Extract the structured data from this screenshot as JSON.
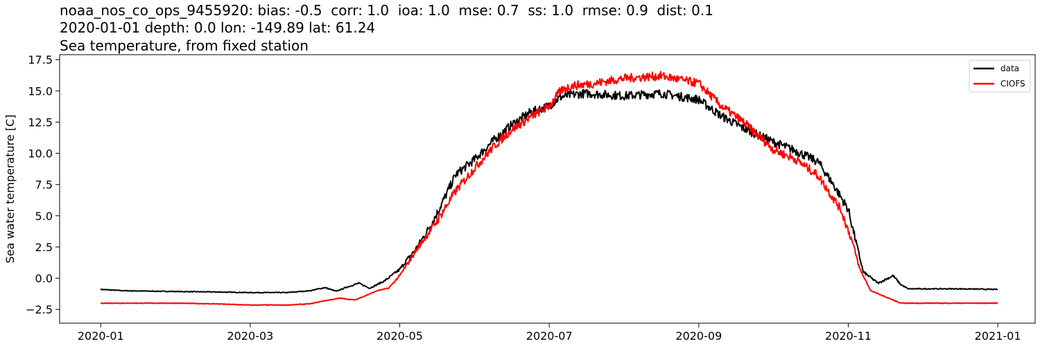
{
  "chart_data": {
    "type": "line",
    "title_lines": [
      "noaa_nos_co_ops_9455920: bias: -0.5  corr: 1.0  ioa: 1.0  mse: 0.7  ss: 1.0  rmse: 0.9  dist: 0.1",
      "2020-01-01 depth: 0.0 lon: -149.89 lat: 61.24",
      "Sea temperature, from fixed station"
    ],
    "ylabel": "Sea water temperature [C]",
    "xlabel": "",
    "xlim": [
      -0.55,
      12.5
    ],
    "ylim": [
      -3.6,
      17.9
    ],
    "x_ticks": [
      {
        "value": 0,
        "label": "2020-01"
      },
      {
        "value": 2,
        "label": "2020-03"
      },
      {
        "value": 4,
        "label": "2020-05"
      },
      {
        "value": 6,
        "label": "2020-07"
      },
      {
        "value": 8,
        "label": "2020-09"
      },
      {
        "value": 10,
        "label": "2020-11"
      },
      {
        "value": 12,
        "label": "2021-01"
      }
    ],
    "y_ticks": [
      {
        "value": -2.5,
        "label": "−2.5"
      },
      {
        "value": 0.0,
        "label": "0.0"
      },
      {
        "value": 2.5,
        "label": "2.5"
      },
      {
        "value": 5.0,
        "label": "5.0"
      },
      {
        "value": 7.5,
        "label": "7.5"
      },
      {
        "value": 10.0,
        "label": "10.0"
      },
      {
        "value": 12.5,
        "label": "12.5"
      },
      {
        "value": 15.0,
        "label": "15.0"
      },
      {
        "value": 17.5,
        "label": "17.5"
      }
    ],
    "legend_position": "top-right",
    "series": [
      {
        "name": "data",
        "color": "#000000",
        "noise": 0.35,
        "points": [
          [
            0.0,
            -0.9
          ],
          [
            0.3,
            -1.0
          ],
          [
            0.8,
            -1.05
          ],
          [
            1.5,
            -1.1
          ],
          [
            2.0,
            -1.15
          ],
          [
            2.5,
            -1.15
          ],
          [
            2.8,
            -1.0
          ],
          [
            3.0,
            -0.75
          ],
          [
            3.15,
            -1.05
          ],
          [
            3.3,
            -0.7
          ],
          [
            3.45,
            -0.4
          ],
          [
            3.6,
            -0.8
          ],
          [
            3.8,
            -0.2
          ],
          [
            4.0,
            0.7
          ],
          [
            4.1,
            1.5
          ],
          [
            4.2,
            2.2
          ],
          [
            4.35,
            3.6
          ],
          [
            4.5,
            5.2
          ],
          [
            4.75,
            8.3
          ],
          [
            5.0,
            9.5
          ],
          [
            5.25,
            11.0
          ],
          [
            5.5,
            12.3
          ],
          [
            5.75,
            13.3
          ],
          [
            6.0,
            13.8
          ],
          [
            6.15,
            14.5
          ],
          [
            6.3,
            14.7
          ],
          [
            6.5,
            14.8
          ],
          [
            7.0,
            14.6
          ],
          [
            7.5,
            14.8
          ],
          [
            8.0,
            14.3
          ],
          [
            8.3,
            13.0
          ],
          [
            8.6,
            12.0
          ],
          [
            9.0,
            10.9
          ],
          [
            9.3,
            10.2
          ],
          [
            9.6,
            9.3
          ],
          [
            9.8,
            7.5
          ],
          [
            10.0,
            5.5
          ],
          [
            10.1,
            3.0
          ],
          [
            10.2,
            0.5
          ],
          [
            10.4,
            -0.4
          ],
          [
            10.6,
            0.2
          ],
          [
            10.7,
            -0.5
          ],
          [
            10.8,
            -0.85
          ],
          [
            11.5,
            -0.85
          ],
          [
            12.0,
            -0.9
          ]
        ]
      },
      {
        "name": "CIOFS",
        "color": "#ff0000",
        "noise": 0.35,
        "points": [
          [
            0.0,
            -2.0
          ],
          [
            1.0,
            -2.0
          ],
          [
            1.5,
            -2.05
          ],
          [
            2.0,
            -2.15
          ],
          [
            2.5,
            -2.15
          ],
          [
            2.8,
            -2.05
          ],
          [
            3.0,
            -1.8
          ],
          [
            3.2,
            -1.6
          ],
          [
            3.4,
            -1.75
          ],
          [
            3.7,
            -1.0
          ],
          [
            3.85,
            -0.8
          ],
          [
            4.0,
            0.2
          ],
          [
            4.25,
            2.5
          ],
          [
            4.5,
            4.6
          ],
          [
            4.75,
            7.0
          ],
          [
            5.0,
            8.8
          ],
          [
            5.25,
            10.5
          ],
          [
            5.5,
            11.9
          ],
          [
            5.75,
            12.9
          ],
          [
            6.0,
            13.8
          ],
          [
            6.15,
            15.0
          ],
          [
            6.3,
            15.4
          ],
          [
            6.6,
            15.6
          ],
          [
            7.0,
            16.0
          ],
          [
            7.5,
            16.2
          ],
          [
            8.0,
            15.6
          ],
          [
            8.3,
            13.8
          ],
          [
            8.6,
            12.5
          ],
          [
            9.0,
            10.3
          ],
          [
            9.3,
            9.5
          ],
          [
            9.6,
            8.2
          ],
          [
            9.9,
            5.5
          ],
          [
            10.05,
            3.0
          ],
          [
            10.15,
            0.8
          ],
          [
            10.3,
            -1.0
          ],
          [
            10.5,
            -1.5
          ],
          [
            10.7,
            -2.0
          ],
          [
            11.0,
            -2.0
          ],
          [
            11.5,
            -2.0
          ],
          [
            12.0,
            -2.0
          ]
        ]
      }
    ]
  }
}
